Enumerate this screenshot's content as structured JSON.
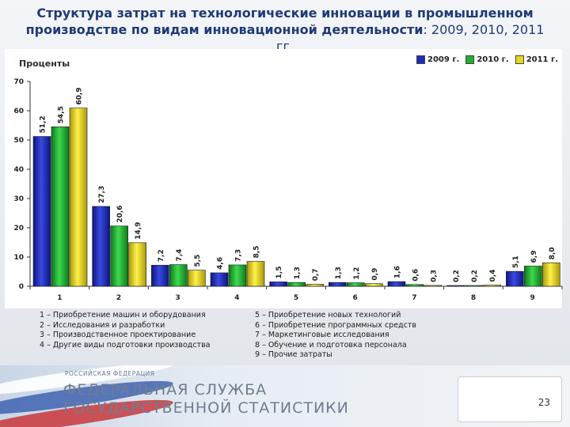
{
  "title": "Структура затрат на технологические инновации в промышленном",
  "title_line2": "производстве по видам инновационной деятельности",
  "title_years": ": 2009, 2010, 2011 гг.",
  "units_label": "Проценты",
  "legend": [
    {
      "label": "2009 г.",
      "color": "#1f2bb8"
    },
    {
      "label": "2010 г.",
      "color": "#1fb02f"
    },
    {
      "label": "2011 г.",
      "color": "#e6d81e"
    }
  ],
  "chart_data": {
    "type": "bar",
    "categories": [
      "1",
      "2",
      "3",
      "4",
      "5",
      "6",
      "7",
      "8",
      "9"
    ],
    "series": [
      {
        "name": "2009 г.",
        "values": [
          51.2,
          27.3,
          7.2,
          4.6,
          1.5,
          1.3,
          1.6,
          0.2,
          5.1
        ],
        "labels": [
          "51,2",
          "27,3",
          "7,2",
          "4,6",
          "1,5",
          "1,3",
          "1,6",
          "0,2",
          "5,1"
        ]
      },
      {
        "name": "2010 г.",
        "values": [
          54.5,
          20.6,
          7.4,
          7.3,
          1.3,
          1.2,
          0.6,
          0.2,
          6.9
        ],
        "labels": [
          "54,5",
          "20,6",
          "7,4",
          "7,3",
          "1,3",
          "1,2",
          "0,6",
          "0,2",
          "6,9"
        ]
      },
      {
        "name": "2011 г.",
        "values": [
          60.9,
          14.9,
          5.5,
          8.5,
          0.7,
          0.9,
          0.3,
          0.4,
          8.0
        ],
        "labels": [
          "60,9",
          "14,9",
          "5,5",
          "8,5",
          "0,7",
          "0,9",
          "0,3",
          "0,4",
          "8,0"
        ]
      }
    ],
    "ylim": [
      0,
      70
    ],
    "yticks": [
      0,
      10,
      20,
      30,
      40,
      50,
      60,
      70
    ],
    "grid": false,
    "legend_position": "top-right"
  },
  "notes_left": [
    "1 – Приобретение машин и оборудования",
    "2 – Исследования и разработки",
    "3 – Производственное проектирование",
    "4 – Другие виды подготовки производства"
  ],
  "notes_right": [
    "5 – Приобретение новых технологий",
    "6 – Приобретение программных средств",
    "7 – Маркетинговые исследования",
    "8 – Обучение и подготовка персонала",
    "9 – Прочие затраты"
  ],
  "footer": {
    "country": "РОССИЙСКАЯ ФЕДЕРАЦИЯ",
    "org_line1": "ФЕДЕРАЛЬНАЯ СЛУЖБА",
    "org_line2": "ГОСУДАРСТВЕННОЙ СТАТИСТИКИ"
  },
  "page_number": "23"
}
